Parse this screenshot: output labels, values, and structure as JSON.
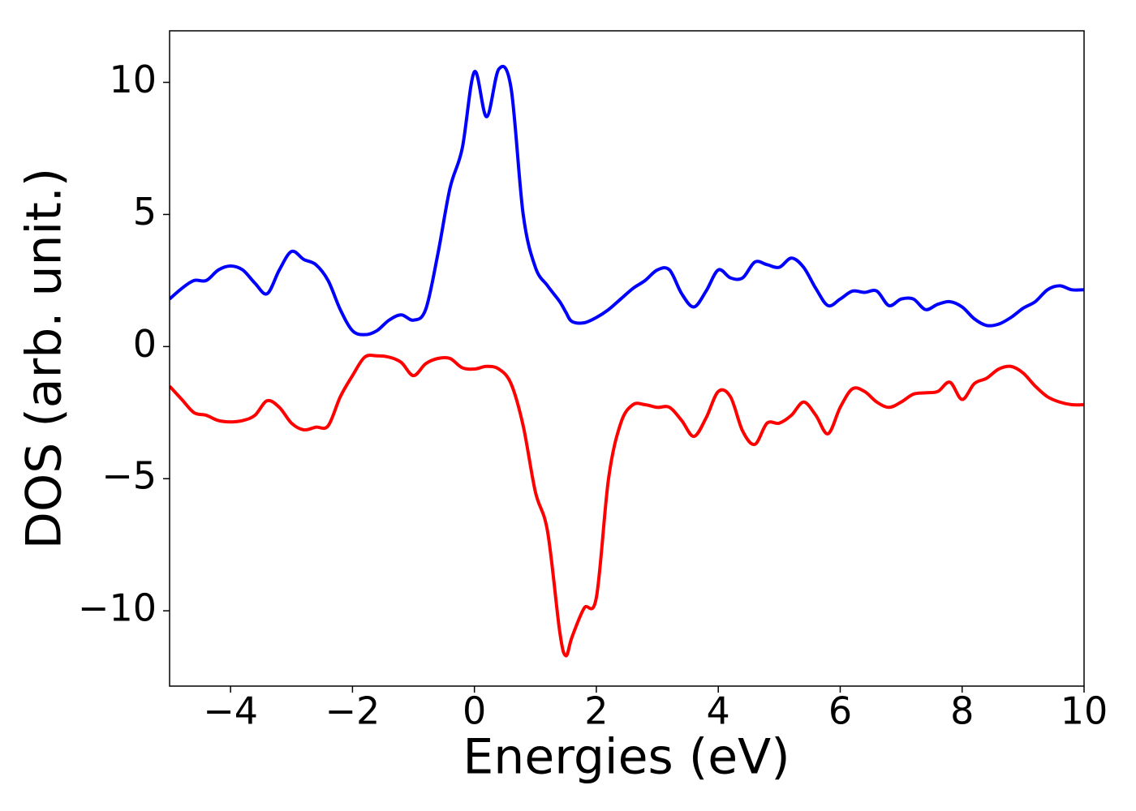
{
  "chart_data": {
    "type": "line",
    "xlabel": "Energies (eV)",
    "ylabel": "DOS (arb. unit.)",
    "x": [
      -5,
      -4.8,
      -4.6,
      -4.4,
      -4.2,
      -4,
      -3.8,
      -3.6,
      -3.4,
      -3.2,
      -3,
      -2.8,
      -2.6,
      -2.4,
      -2.2,
      -2,
      -1.8,
      -1.6,
      -1.4,
      -1.2,
      -1,
      -0.8,
      -0.6,
      -0.4,
      -0.2,
      0,
      0.2,
      0.4,
      0.6,
      0.8,
      1,
      1.2,
      1.4,
      1.5,
      1.6,
      1.8,
      2,
      2.2,
      2.4,
      2.6,
      2.8,
      3,
      3.2,
      3.4,
      3.6,
      3.8,
      4,
      4.2,
      4.4,
      4.6,
      4.8,
      5,
      5.2,
      5.4,
      5.6,
      5.8,
      6,
      6.2,
      6.4,
      6.6,
      6.8,
      7,
      7.2,
      7.4,
      7.6,
      7.8,
      8,
      8.2,
      8.4,
      8.6,
      8.8,
      9,
      9.2,
      9.4,
      9.6,
      9.8,
      10
    ],
    "series": [
      {
        "color": "#0000ff",
        "values": [
          1.8,
          2.2,
          2.5,
          2.5,
          2.9,
          3.05,
          2.9,
          2.4,
          2.0,
          2.9,
          3.6,
          3.3,
          3.1,
          2.5,
          1.4,
          0.6,
          0.45,
          0.6,
          1.0,
          1.2,
          1.0,
          1.4,
          3.5,
          6.0,
          7.5,
          10.4,
          8.7,
          10.5,
          9.8,
          5.0,
          3.0,
          2.3,
          1.7,
          1.3,
          0.95,
          0.9,
          1.1,
          1.4,
          1.8,
          2.2,
          2.5,
          2.9,
          2.9,
          2.0,
          1.5,
          2.1,
          2.9,
          2.6,
          2.6,
          3.2,
          3.1,
          3.0,
          3.35,
          3.0,
          2.2,
          1.55,
          1.8,
          2.1,
          2.05,
          2.1,
          1.55,
          1.8,
          1.8,
          1.4,
          1.6,
          1.7,
          1.5,
          1.05,
          0.8,
          0.85,
          1.1,
          1.45,
          1.7,
          2.15,
          2.3,
          2.15,
          2.15
        ]
      },
      {
        "color": "#ff0000",
        "values": [
          -1.5,
          -2.0,
          -2.5,
          -2.6,
          -2.8,
          -2.85,
          -2.8,
          -2.6,
          -2.05,
          -2.3,
          -2.9,
          -3.15,
          -3.05,
          -3.0,
          -1.9,
          -1.1,
          -0.4,
          -0.35,
          -0.4,
          -0.6,
          -1.1,
          -0.65,
          -0.45,
          -0.45,
          -0.8,
          -0.85,
          -0.75,
          -0.85,
          -1.4,
          -3.0,
          -5.5,
          -7.0,
          -10.8,
          -11.7,
          -11.0,
          -9.9,
          -9.5,
          -5.0,
          -2.9,
          -2.2,
          -2.2,
          -2.3,
          -2.3,
          -2.8,
          -3.4,
          -2.7,
          -1.7,
          -1.9,
          -3.2,
          -3.7,
          -2.9,
          -2.9,
          -2.6,
          -2.1,
          -2.6,
          -3.3,
          -2.3,
          -1.6,
          -1.7,
          -2.1,
          -2.3,
          -2.1,
          -1.8,
          -1.75,
          -1.7,
          -1.35,
          -2.0,
          -1.4,
          -1.2,
          -0.85,
          -0.75,
          -1.0,
          -1.5,
          -1.9,
          -2.1,
          -2.2,
          -2.2
        ]
      }
    ],
    "xlim": [
      -5,
      10
    ],
    "xticks": [
      {
        "value": -4,
        "label": "−4"
      },
      {
        "value": -2,
        "label": "−2"
      },
      0,
      2,
      4,
      6,
      8,
      10
    ],
    "ylim": [
      -12.85,
      11.95
    ],
    "yticks": [
      {
        "value": -10,
        "label": "−10"
      },
      {
        "value": -5,
        "label": "−5"
      },
      0,
      5,
      10
    ],
    "grid": false
  }
}
